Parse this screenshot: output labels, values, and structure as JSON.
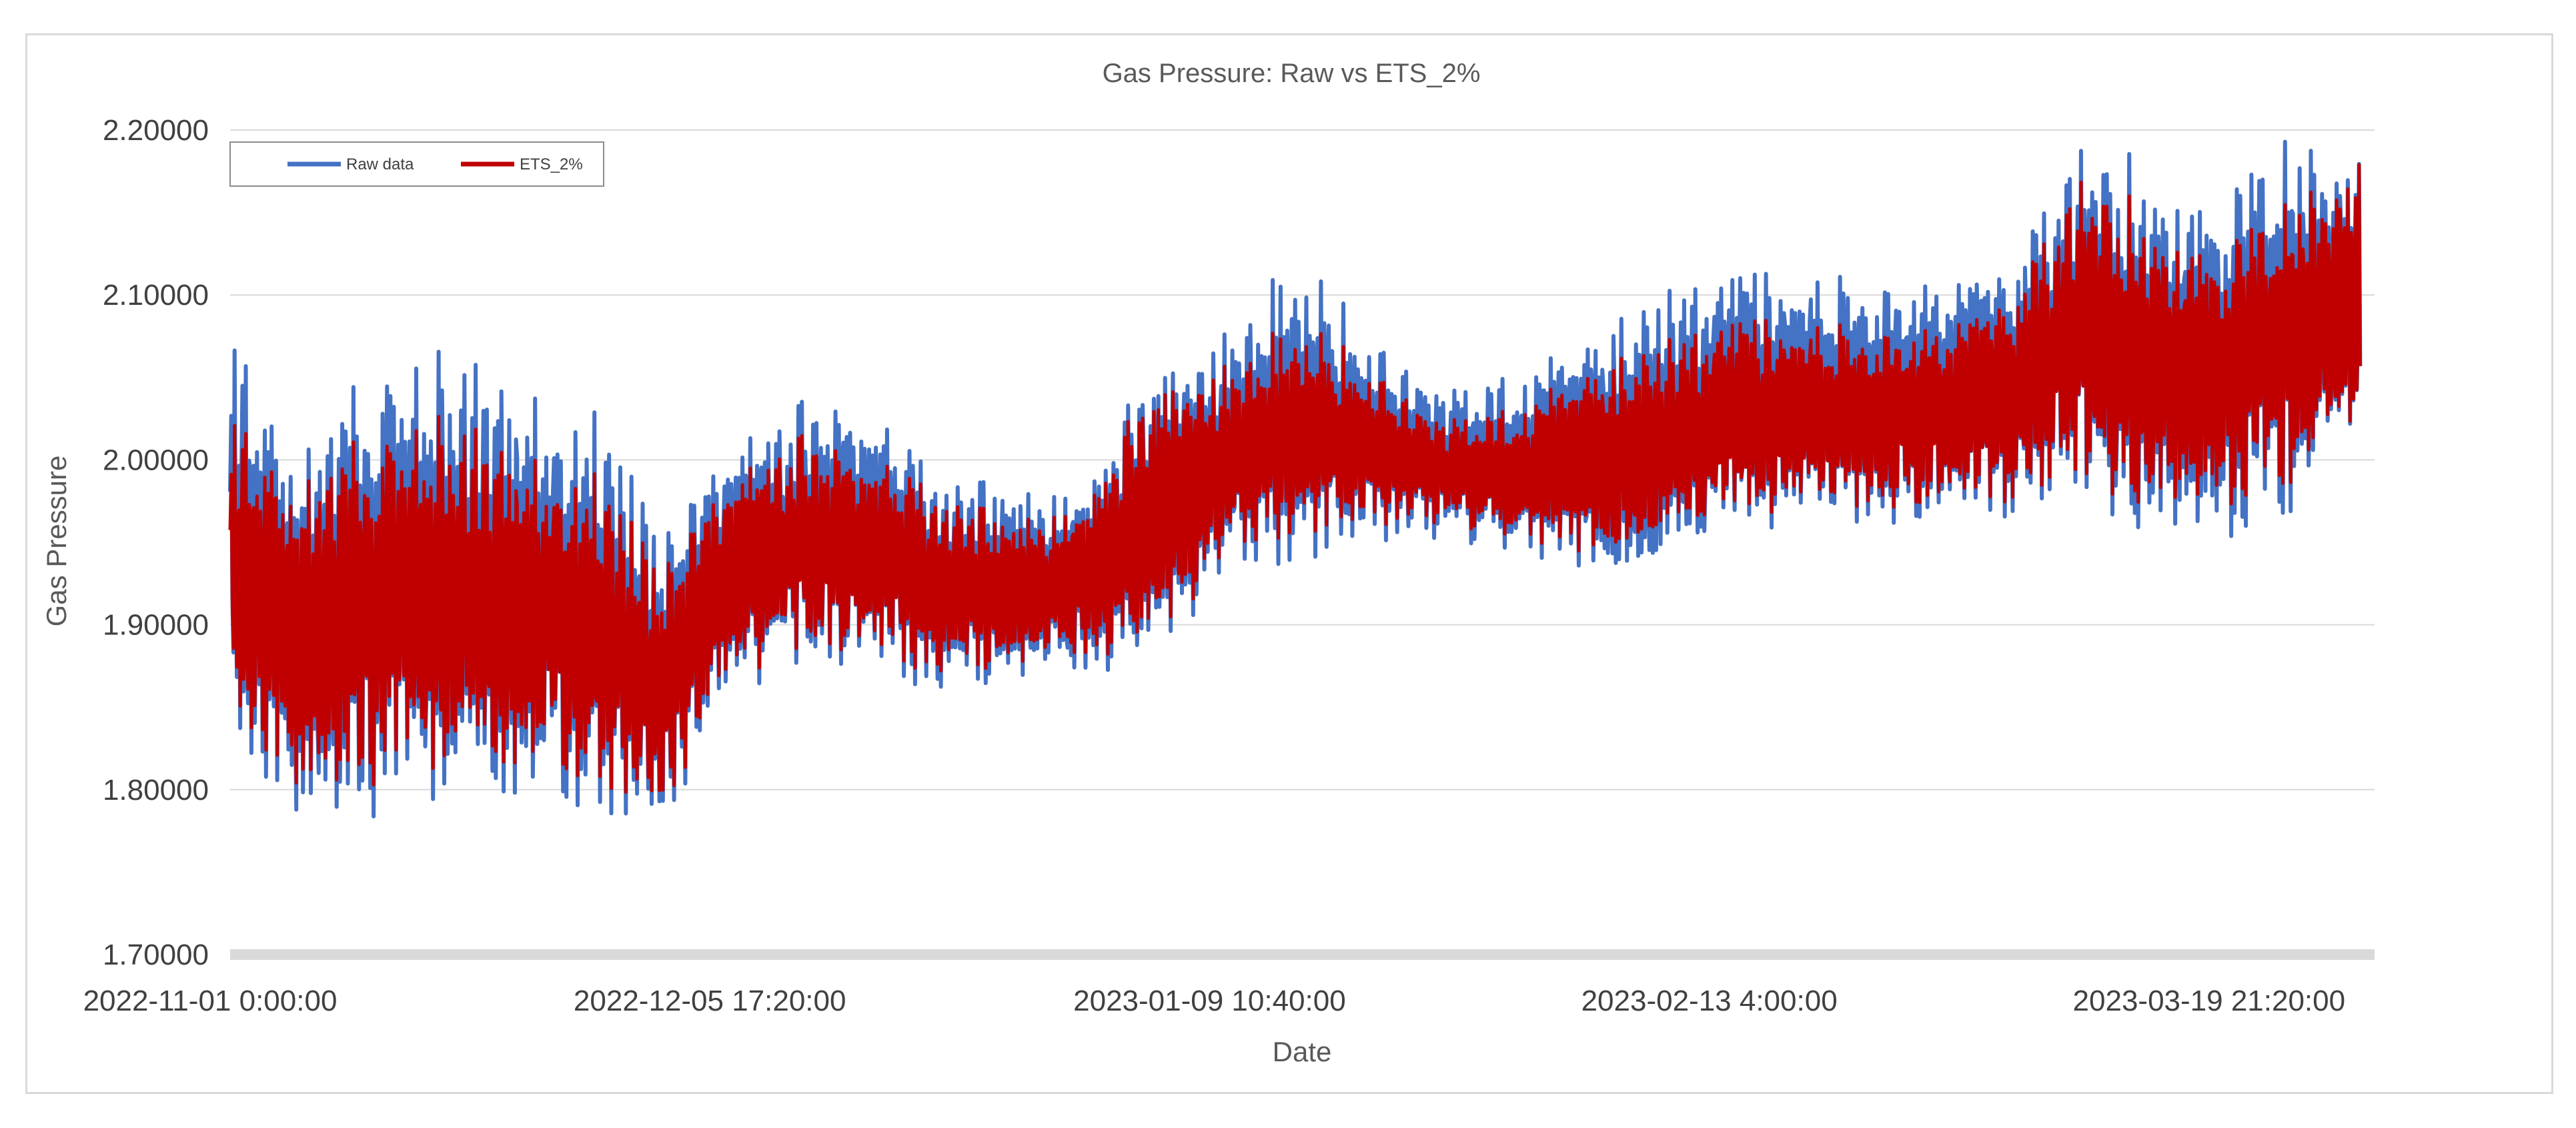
{
  "chart_data": {
    "type": "line",
    "title": "Gas Pressure: Raw vs ETS_2%",
    "xlabel": "Date",
    "ylabel": "Gas Pressure",
    "ylim": [
      1.7,
      2.2
    ],
    "yticks": [
      "1.70000",
      "1.80000",
      "1.90000",
      "2.00000",
      "2.10000",
      "2.20000"
    ],
    "xticks": [
      "2022-11-01 0:00:00",
      "2022-12-05 17:20:00",
      "2023-01-09 10:40:00",
      "2023-02-13 4:00:00",
      "2023-03-19 21:20:00"
    ],
    "xlim": [
      "2022-11-01 0:00:00",
      "2023-03-30 0:00:00"
    ],
    "grid": true,
    "legend": "top-left",
    "series": [
      {
        "name": "Raw data",
        "color": "#4472c4",
        "x": [
          "2022-11-01",
          "2022-11-06",
          "2022-11-11",
          "2022-11-16",
          "2022-11-21",
          "2022-11-26",
          "2022-12-01",
          "2022-12-05",
          "2022-12-10",
          "2022-12-15",
          "2022-12-20",
          "2022-12-25",
          "2022-12-30",
          "2023-01-04",
          "2023-01-09",
          "2023-01-14",
          "2023-01-19",
          "2023-01-24",
          "2023-01-29",
          "2023-02-03",
          "2023-02-08",
          "2023-02-13",
          "2023-02-18",
          "2023-02-23",
          "2023-02-28",
          "2023-03-05",
          "2023-03-10",
          "2023-03-15",
          "2023-03-19",
          "2023-03-24",
          "2023-03-29"
        ],
        "min": [
          1.82,
          1.76,
          1.78,
          1.79,
          1.79,
          1.78,
          1.77,
          1.85,
          1.87,
          1.87,
          1.86,
          1.86,
          1.87,
          1.87,
          1.93,
          1.93,
          1.95,
          1.95,
          1.94,
          1.93,
          1.93,
          1.95,
          1.96,
          1.96,
          1.96,
          1.96,
          1.97,
          1.94,
          1.95,
          1.96,
          2.0
        ],
        "max": [
          2.08,
          2.02,
          2.06,
          2.07,
          2.05,
          2.04,
          1.96,
          2.01,
          2.04,
          2.04,
          1.99,
          1.99,
          1.98,
          2.06,
          2.08,
          2.13,
          2.08,
          2.05,
          2.05,
          2.08,
          2.1,
          2.12,
          2.12,
          2.11,
          2.12,
          2.13,
          2.2,
          2.18,
          2.16,
          2.2,
          2.2
        ]
      },
      {
        "name": "ETS_2%",
        "color": "#c00000",
        "x": [
          "2022-11-01",
          "2022-11-06",
          "2022-11-11",
          "2022-11-16",
          "2022-11-21",
          "2022-11-26",
          "2022-12-01",
          "2022-12-05",
          "2022-12-10",
          "2022-12-15",
          "2022-12-20",
          "2022-12-25",
          "2022-12-30",
          "2023-01-04",
          "2023-01-09",
          "2023-01-14",
          "2023-01-19",
          "2023-01-24",
          "2023-01-29",
          "2023-02-03",
          "2023-02-08",
          "2023-02-13",
          "2023-02-18",
          "2023-02-23",
          "2023-02-28",
          "2023-03-05",
          "2023-03-10",
          "2023-03-15",
          "2023-03-19",
          "2023-03-24",
          "2023-03-29"
        ],
        "min": [
          1.84,
          1.78,
          1.8,
          1.81,
          1.81,
          1.8,
          1.78,
          1.86,
          1.88,
          1.88,
          1.87,
          1.87,
          1.88,
          1.88,
          1.94,
          1.95,
          1.96,
          1.96,
          1.95,
          1.94,
          1.95,
          1.96,
          1.97,
          1.97,
          1.97,
          1.97,
          1.98,
          1.96,
          1.97,
          1.98,
          2.0
        ],
        "max": [
          2.03,
          2.0,
          2.02,
          2.03,
          2.01,
          2.0,
          1.94,
          1.99,
          2.02,
          2.01,
          1.98,
          1.97,
          1.97,
          2.05,
          2.06,
          2.09,
          2.06,
          2.03,
          2.03,
          2.06,
          2.07,
          2.09,
          2.09,
          2.08,
          2.09,
          2.11,
          2.18,
          2.15,
          2.13,
          2.16,
          2.2
        ]
      }
    ]
  }
}
